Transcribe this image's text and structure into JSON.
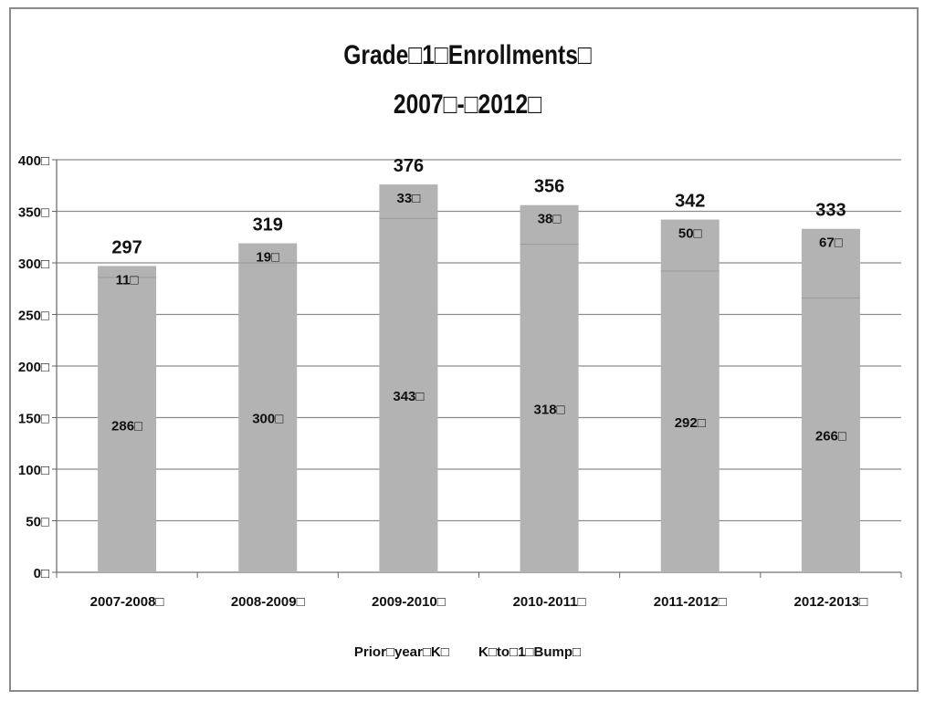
{
  "chart_data": {
    "type": "bar",
    "stacked": true,
    "title_line1": "Grade□1□Enrollments□",
    "title_line2": "2007□-□2012□",
    "categories": [
      "2007-2008□",
      "2008-2009□",
      "2009-2010□",
      "2010-2011□",
      "2011-2012□",
      "2012-2013□"
    ],
    "series": [
      {
        "name": "Prior□year□K□",
        "values": [
          286,
          300,
          343,
          318,
          292,
          266
        ],
        "labels": [
          "286□",
          "300□",
          "343□",
          "318□",
          "292□",
          "266□"
        ]
      },
      {
        "name": "K□to□1□Bump□",
        "values": [
          11,
          19,
          33,
          38,
          50,
          67
        ],
        "labels": [
          "11□",
          "19□",
          "33□",
          "38□",
          "50□",
          "67□"
        ]
      }
    ],
    "totals": [
      "297",
      "319",
      "376",
      "356",
      "342",
      "333"
    ],
    "ylim": [
      0,
      400
    ],
    "yticks": [
      "0□",
      "50□",
      "100□",
      "150□",
      "200□",
      "250□",
      "300□",
      "350□",
      "400□"
    ],
    "grid": true,
    "legend_position": "bottom",
    "bar_color": "#b3b3b3"
  }
}
